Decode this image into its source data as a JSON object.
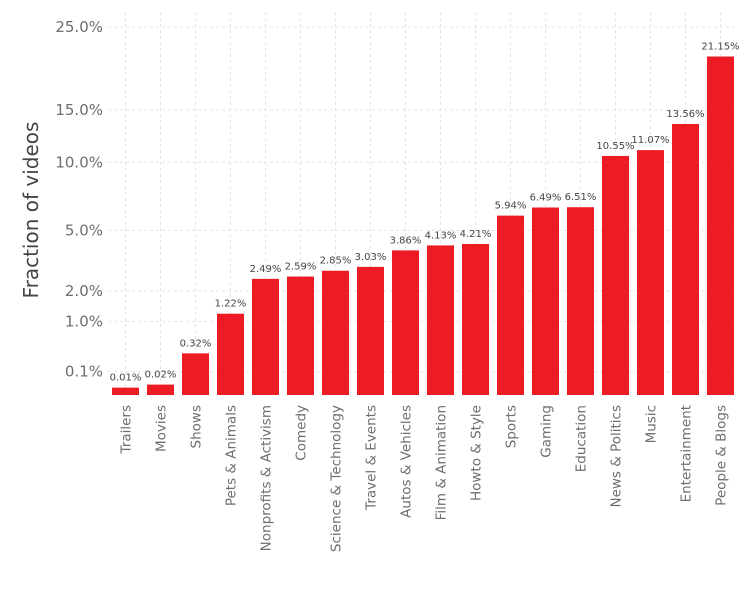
{
  "chart_data": {
    "type": "bar",
    "title": "",
    "xlabel": "",
    "ylabel": "Fraction of videos",
    "y_scale": "nonlinear (square-root-like)",
    "ylim": [
      0,
      25
    ],
    "bar_color": "#ed1c24",
    "grid": true,
    "y_ticks": [
      {
        "value": 0.1,
        "label": "0.1%"
      },
      {
        "value": 1.0,
        "label": "1.0%"
      },
      {
        "value": 2.0,
        "label": "2.0%"
      },
      {
        "value": 5.0,
        "label": "5.0%"
      },
      {
        "value": 10.0,
        "label": "10.0%"
      },
      {
        "value": 15.0,
        "label": "15.0%"
      },
      {
        "value": 25.0,
        "label": "25.0%"
      }
    ],
    "categories": [
      "Trailers",
      "Movies",
      "Shows",
      "Pets & Animals",
      "Nonprofits & Activism",
      "Comedy",
      "Science & Technology",
      "Travel & Events",
      "Autos & Vehicles",
      "Film & Animation",
      "Howto & Style",
      "Sports",
      "Gaming",
      "Education",
      "News & Politics",
      "Music",
      "Entertainment",
      "People & Blogs"
    ],
    "values": [
      0.01,
      0.02,
      0.32,
      1.22,
      2.49,
      2.59,
      2.85,
      3.03,
      3.86,
      4.13,
      4.21,
      5.94,
      6.49,
      6.51,
      10.55,
      11.07,
      13.56,
      21.15
    ],
    "data_labels": [
      "0.01%",
      "0.02%",
      "0.32%",
      "1.22%",
      "2.49%",
      "2.59%",
      "2.85%",
      "3.03%",
      "3.86%",
      "4.13%",
      "4.21%",
      "5.94%",
      "6.49%",
      "6.51%",
      "10.55%",
      "11.07%",
      "13.56%",
      "21.15%"
    ]
  }
}
